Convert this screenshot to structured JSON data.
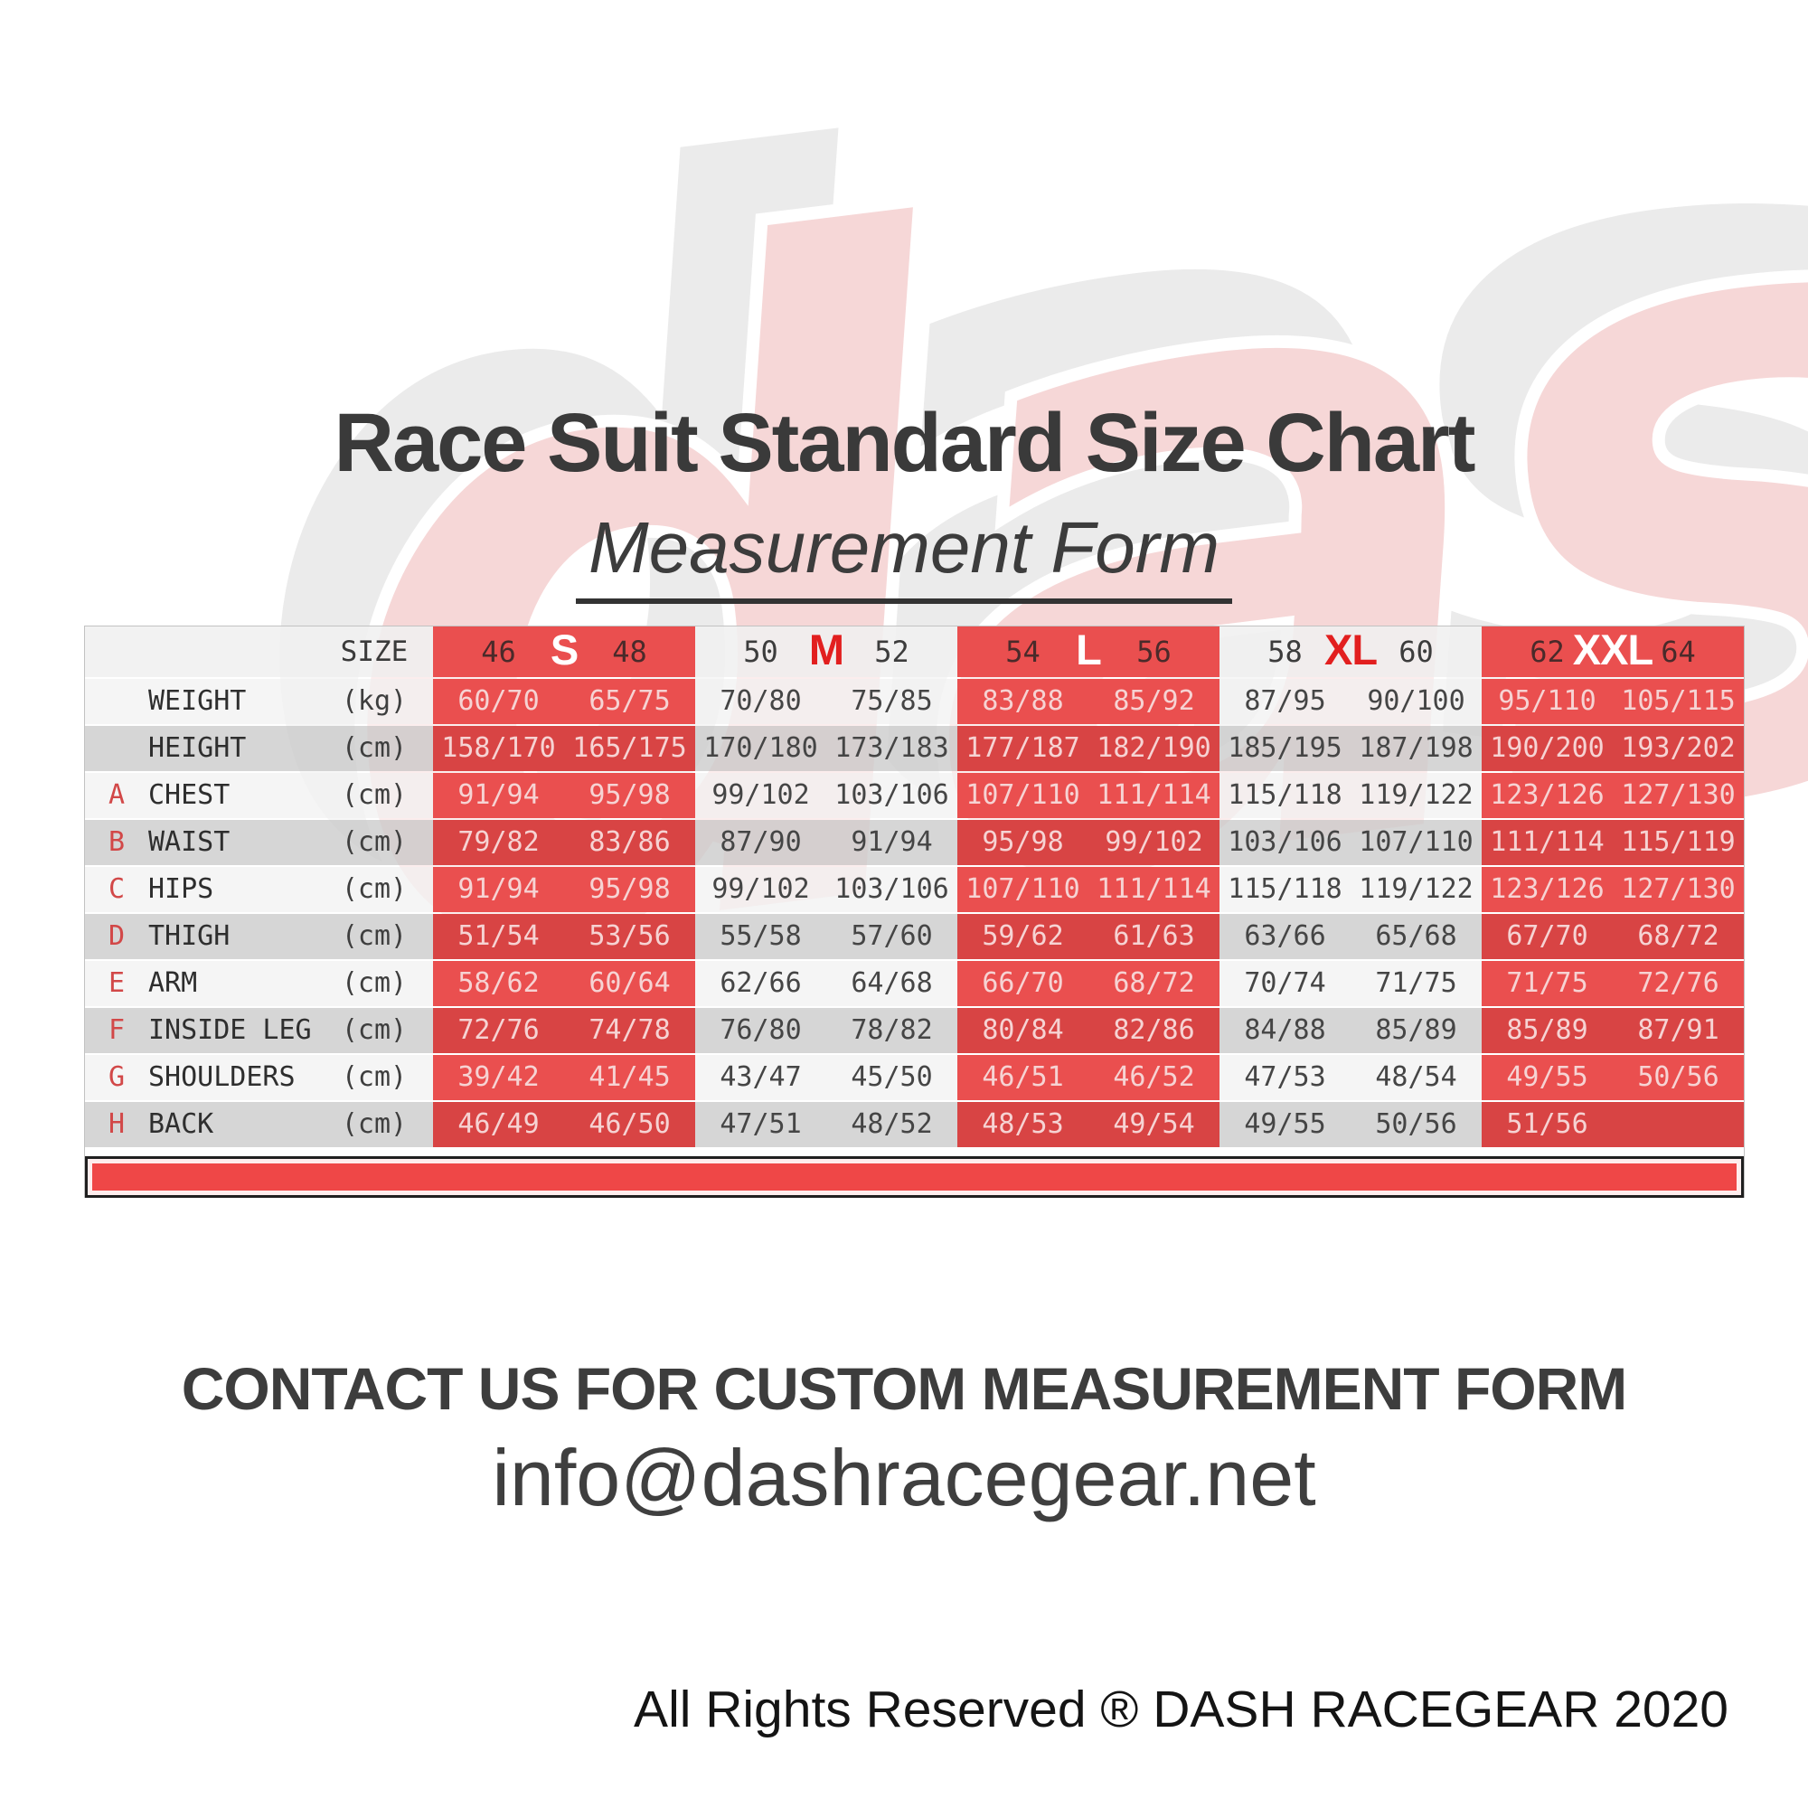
{
  "watermark": {
    "label": "dash"
  },
  "chart_data": {
    "type": "table",
    "title": "Race Suit Standard Size Chart",
    "subtitle": "Measurement Form",
    "size_header": {
      "label": "SIZE",
      "groups": [
        {
          "size": "S",
          "eu_left": "46",
          "eu_right": "48",
          "tone": "red"
        },
        {
          "size": "M",
          "eu_left": "50",
          "eu_right": "52",
          "tone": "light"
        },
        {
          "size": "L",
          "eu_left": "54",
          "eu_right": "56",
          "tone": "red"
        },
        {
          "size": "XL",
          "eu_left": "58",
          "eu_right": "60",
          "tone": "light"
        },
        {
          "size": "XXL",
          "eu_left": "62",
          "eu_right": "64",
          "tone": "red"
        }
      ]
    },
    "rows": [
      {
        "letter": "",
        "label": "WEIGHT",
        "unit": "(kg)",
        "values": [
          "60/70",
          "65/75",
          "70/80",
          "75/85",
          "83/88",
          "85/92",
          "87/95",
          "90/100",
          "95/110",
          "105/115"
        ]
      },
      {
        "letter": "",
        "label": "HEIGHT",
        "unit": "(cm)",
        "values": [
          "158/170",
          "165/175",
          "170/180",
          "173/183",
          "177/187",
          "182/190",
          "185/195",
          "187/198",
          "190/200",
          "193/202"
        ]
      },
      {
        "letter": "A",
        "label": "CHEST",
        "unit": "(cm)",
        "values": [
          "91/94",
          "95/98",
          "99/102",
          "103/106",
          "107/110",
          "111/114",
          "115/118",
          "119/122",
          "123/126",
          "127/130"
        ]
      },
      {
        "letter": "B",
        "label": "WAIST",
        "unit": "(cm)",
        "values": [
          "79/82",
          "83/86",
          "87/90",
          "91/94",
          "95/98",
          "99/102",
          "103/106",
          "107/110",
          "111/114",
          "115/119"
        ]
      },
      {
        "letter": "C",
        "label": "HIPS",
        "unit": "(cm)",
        "values": [
          "91/94",
          "95/98",
          "99/102",
          "103/106",
          "107/110",
          "111/114",
          "115/118",
          "119/122",
          "123/126",
          "127/130"
        ]
      },
      {
        "letter": "D",
        "label": "THIGH",
        "unit": "(cm)",
        "values": [
          "51/54",
          "53/56",
          "55/58",
          "57/60",
          "59/62",
          "61/63",
          "63/66",
          "65/68",
          "67/70",
          "68/72"
        ]
      },
      {
        "letter": "E",
        "label": "ARM",
        "unit": "(cm)",
        "values": [
          "58/62",
          "60/64",
          "62/66",
          "64/68",
          "66/70",
          "68/72",
          "70/74",
          "71/75",
          "71/75",
          "72/76"
        ]
      },
      {
        "letter": "F",
        "label": "INSIDE LEG",
        "unit": "(cm)",
        "values": [
          "72/76",
          "74/78",
          "76/80",
          "78/82",
          "80/84",
          "82/86",
          "84/88",
          "85/89",
          "85/89",
          "87/91"
        ]
      },
      {
        "letter": "G",
        "label": "SHOULDERS",
        "unit": "(cm)",
        "values": [
          "39/42",
          "41/45",
          "43/47",
          "45/50",
          "46/51",
          "46/52",
          "47/53",
          "48/54",
          "49/55",
          "50/56"
        ]
      },
      {
        "letter": "H",
        "label": "BACK",
        "unit": "(cm)",
        "values": [
          "46/49",
          "46/50",
          "47/51",
          "48/52",
          "48/53",
          "49/54",
          "49/55",
          "50/56",
          "51/56",
          ""
        ]
      }
    ]
  },
  "footer": {
    "contact_heading": "CONTACT US FOR CUSTOM MEASUREMENT FORM",
    "contact_email": "info@dashracegear.net",
    "copyright": "All Rights Reserved ® DASH RACEGEAR 2020"
  },
  "colors": {
    "accent_red": "#ea4f4f",
    "accent_red_dark": "#d84444",
    "bar_red": "#ef4747",
    "letter_red": "#d24848"
  }
}
